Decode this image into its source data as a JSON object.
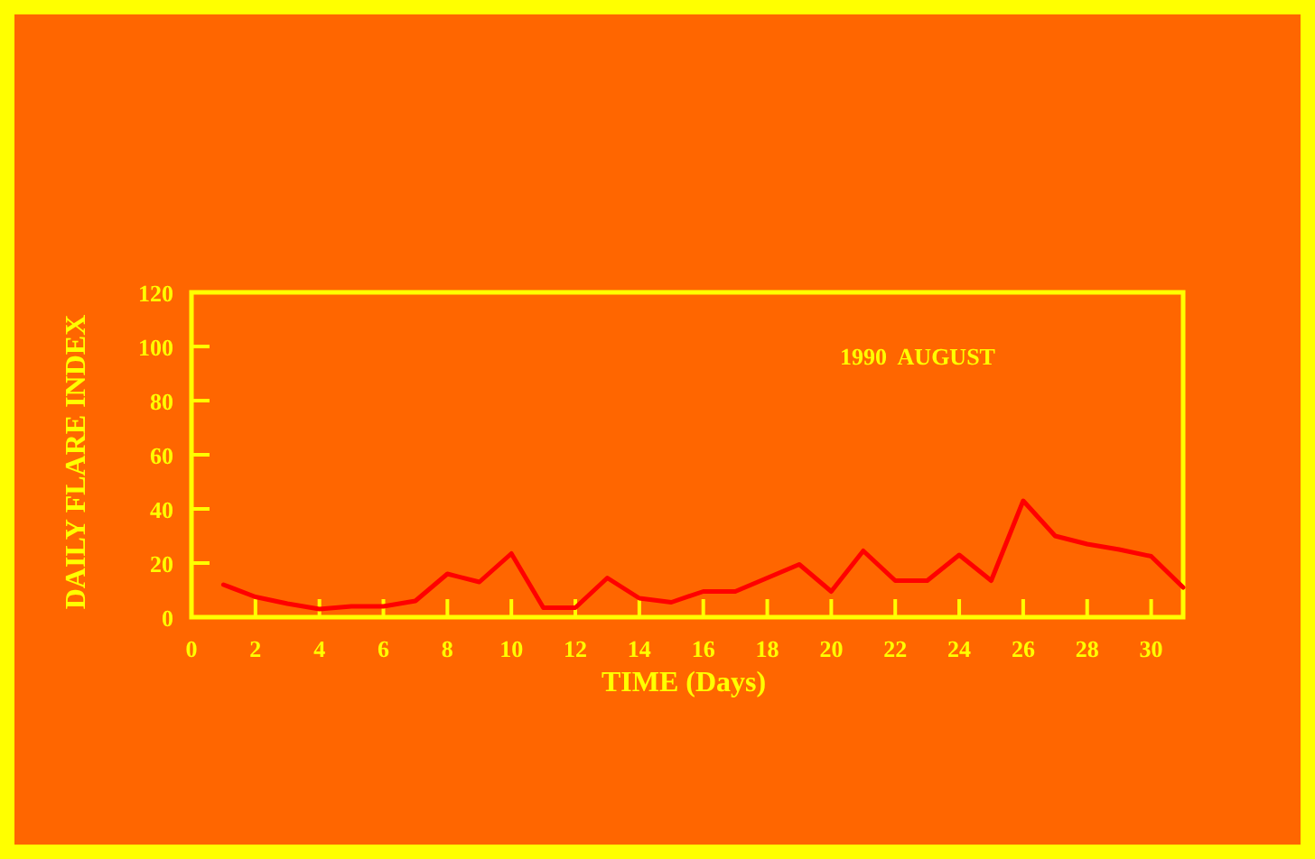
{
  "chart_data": {
    "type": "line",
    "xlabel": "TIME (Days)",
    "ylabel": "DAILY FLARE INDEX",
    "annotations": [
      "1990  AUGUST"
    ],
    "x": [
      1,
      2,
      3,
      4,
      5,
      6,
      7,
      8,
      9,
      10,
      11,
      12,
      13,
      14,
      15,
      16,
      17,
      18,
      19,
      20,
      21,
      22,
      23,
      24,
      25,
      26,
      27,
      28,
      29,
      30,
      31
    ],
    "series": [
      {
        "color": "#ff0000",
        "values": [
          12,
          7.5,
          5,
          3,
          4,
          4,
          6,
          16,
          13,
          23.5,
          3.5,
          3.5,
          14.5,
          7,
          5.5,
          9.5,
          9.5,
          14.5,
          19.5,
          9.5,
          24.5,
          13.5,
          13.5,
          23,
          13.5,
          43,
          30,
          27,
          25,
          22.5,
          11
        ]
      }
    ],
    "xlim": [
      0,
      31
    ],
    "xticks": [
      0,
      2,
      4,
      6,
      8,
      10,
      12,
      14,
      16,
      18,
      20,
      22,
      24,
      26,
      28,
      30
    ],
    "ylim": [
      0,
      120
    ],
    "yticks": [
      0,
      20,
      40,
      60,
      80,
      100,
      120
    ],
    "grid": false,
    "marker": "none",
    "line_style": "solid"
  }
}
